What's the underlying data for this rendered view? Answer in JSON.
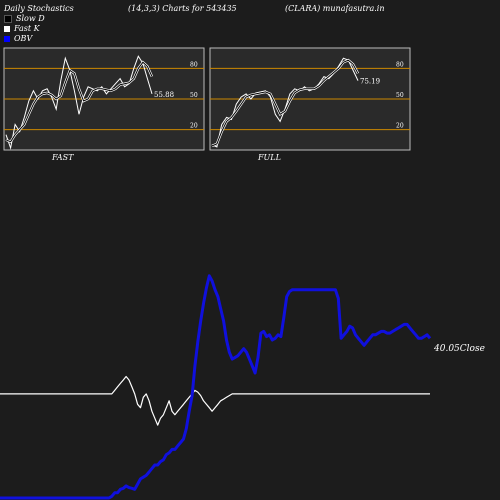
{
  "header": {
    "left": "Daily Stochastics",
    "center": "(14,3,3) Charts for 543435",
    "right": "(CLARA) munafasutra.in"
  },
  "legend": [
    {
      "label": "Slow  D",
      "color": "#000000",
      "icon": "square-swatch"
    },
    {
      "label": "Fast K",
      "color": "#ffffff",
      "icon": "square-swatch"
    },
    {
      "label": "OBV",
      "color": "#0000ff",
      "icon": "square-swatch"
    }
  ],
  "colors": {
    "background": "#1c1c1c",
    "panel": "#2a2a2a",
    "level_line": "#cc8800",
    "obv": "#1010dd",
    "price": "#ffffff"
  },
  "chart_data": [
    {
      "type": "line",
      "panel": "FAST",
      "label": "FAST",
      "ylim": [
        0,
        100
      ],
      "levels": [
        20,
        50,
        80
      ],
      "tick_labels": [
        "80",
        "50",
        "20"
      ],
      "last_value_label": "55.88",
      "series": [
        {
          "name": "Fast K",
          "values": [
            15,
            2,
            25,
            18,
            32,
            48,
            58,
            50,
            58,
            60,
            52,
            40,
            68,
            90,
            78,
            58,
            35,
            52,
            62,
            60,
            58,
            62,
            55,
            60,
            65,
            70,
            62,
            65,
            80,
            92,
            85,
            70,
            55
          ]
        },
        {
          "name": "Slow  D",
          "values": [
            10,
            8,
            15,
            20,
            25,
            35,
            45,
            52,
            55,
            56,
            54,
            50,
            53,
            66,
            78,
            75,
            60,
            48,
            50,
            58,
            60,
            60,
            59,
            58,
            60,
            64,
            65,
            66,
            70,
            80,
            86,
            82,
            72
          ]
        }
      ]
    },
    {
      "type": "line",
      "panel": "FULL",
      "label": "FULL",
      "ylim": [
        0,
        100
      ],
      "levels": [
        20,
        50,
        80
      ],
      "tick_labels": [
        "80",
        "50",
        "20"
      ],
      "last_value_label": "75.19",
      "series": [
        {
          "name": "Fast K",
          "values": [
            5,
            3,
            25,
            32,
            30,
            45,
            52,
            55,
            50,
            56,
            57,
            58,
            52,
            35,
            28,
            40,
            55,
            60,
            58,
            62,
            58,
            60,
            65,
            72,
            70,
            75,
            82,
            90,
            88,
            78,
            68
          ]
        },
        {
          "name": "Slow  D",
          "values": [
            4,
            6,
            18,
            28,
            32,
            38,
            45,
            52,
            54,
            55,
            56,
            57,
            55,
            45,
            35,
            38,
            48,
            56,
            59,
            60,
            60,
            60,
            63,
            68,
            72,
            76,
            80,
            86,
            88,
            84,
            75
          ]
        }
      ]
    },
    {
      "type": "line",
      "panel": "OBV",
      "label": "OBV",
      "last_value_label": "40.05Close",
      "series": [
        {
          "name": "OBV",
          "color": "#1010dd",
          "values": [
            0,
            0,
            0,
            0,
            0,
            0,
            0,
            0,
            0,
            0,
            0,
            0,
            0,
            0,
            0,
            0,
            0,
            0,
            0,
            0,
            0,
            0,
            0,
            0,
            0,
            0,
            0,
            0,
            0,
            0,
            0,
            0,
            0,
            0,
            0,
            0,
            0,
            0,
            0,
            5,
            15,
            15,
            25,
            28,
            35,
            30,
            28,
            25,
            40,
            55,
            60,
            65,
            75,
            85,
            95,
            95,
            105,
            110,
            125,
            130,
            140,
            140,
            150,
            160,
            170,
            200,
            250,
            295,
            380,
            450,
            510,
            560,
            605,
            640,
            625,
            600,
            580,
            545,
            510,
            455,
            420,
            400,
            405,
            410,
            420,
            430,
            420,
            400,
            380,
            360,
            405,
            475,
            480,
            465,
            470,
            455,
            460,
            470,
            465,
            520,
            580,
            595,
            600,
            600,
            600,
            600,
            600,
            600,
            600,
            600,
            600,
            600,
            600,
            600,
            600,
            600,
            600,
            600,
            575,
            460,
            470,
            480,
            495,
            490,
            470,
            460,
            450,
            440,
            450,
            460,
            470,
            470,
            475,
            480,
            480,
            475,
            475,
            480,
            485,
            490,
            495,
            500,
            500,
            490,
            480,
            470,
            460,
            460,
            465,
            470,
            460
          ]
        },
        {
          "name": "Close",
          "color": "#ffffff",
          "values": [
            300,
            300,
            300,
            300,
            300,
            300,
            300,
            300,
            300,
            300,
            300,
            300,
            300,
            300,
            300,
            300,
            300,
            300,
            300,
            300,
            300,
            300,
            300,
            300,
            300,
            300,
            300,
            300,
            300,
            300,
            300,
            300,
            300,
            300,
            300,
            300,
            300,
            300,
            300,
            300,
            310,
            320,
            330,
            340,
            350,
            340,
            320,
            300,
            270,
            260,
            290,
            300,
            280,
            250,
            230,
            210,
            230,
            240,
            260,
            280,
            250,
            240,
            250,
            260,
            270,
            280,
            290,
            300,
            310,
            305,
            295,
            280,
            270,
            260,
            250,
            260,
            270,
            280,
            285,
            290,
            295,
            300,
            300,
            300,
            300,
            300,
            300,
            300,
            300,
            300,
            300,
            300,
            300,
            300,
            300,
            300,
            300,
            300,
            300,
            300,
            300,
            300,
            300,
            300,
            300,
            300,
            300,
            300,
            300,
            300,
            300,
            300,
            300,
            300,
            300,
            300,
            300,
            300,
            300,
            300,
            300,
            300,
            300,
            300,
            300,
            300,
            300,
            300,
            300,
            300,
            300,
            300,
            300,
            300,
            300,
            300,
            300,
            300,
            300,
            300,
            300,
            300,
            300,
            300,
            300,
            300,
            300,
            300,
            300,
            300,
            300
          ]
        }
      ]
    }
  ]
}
